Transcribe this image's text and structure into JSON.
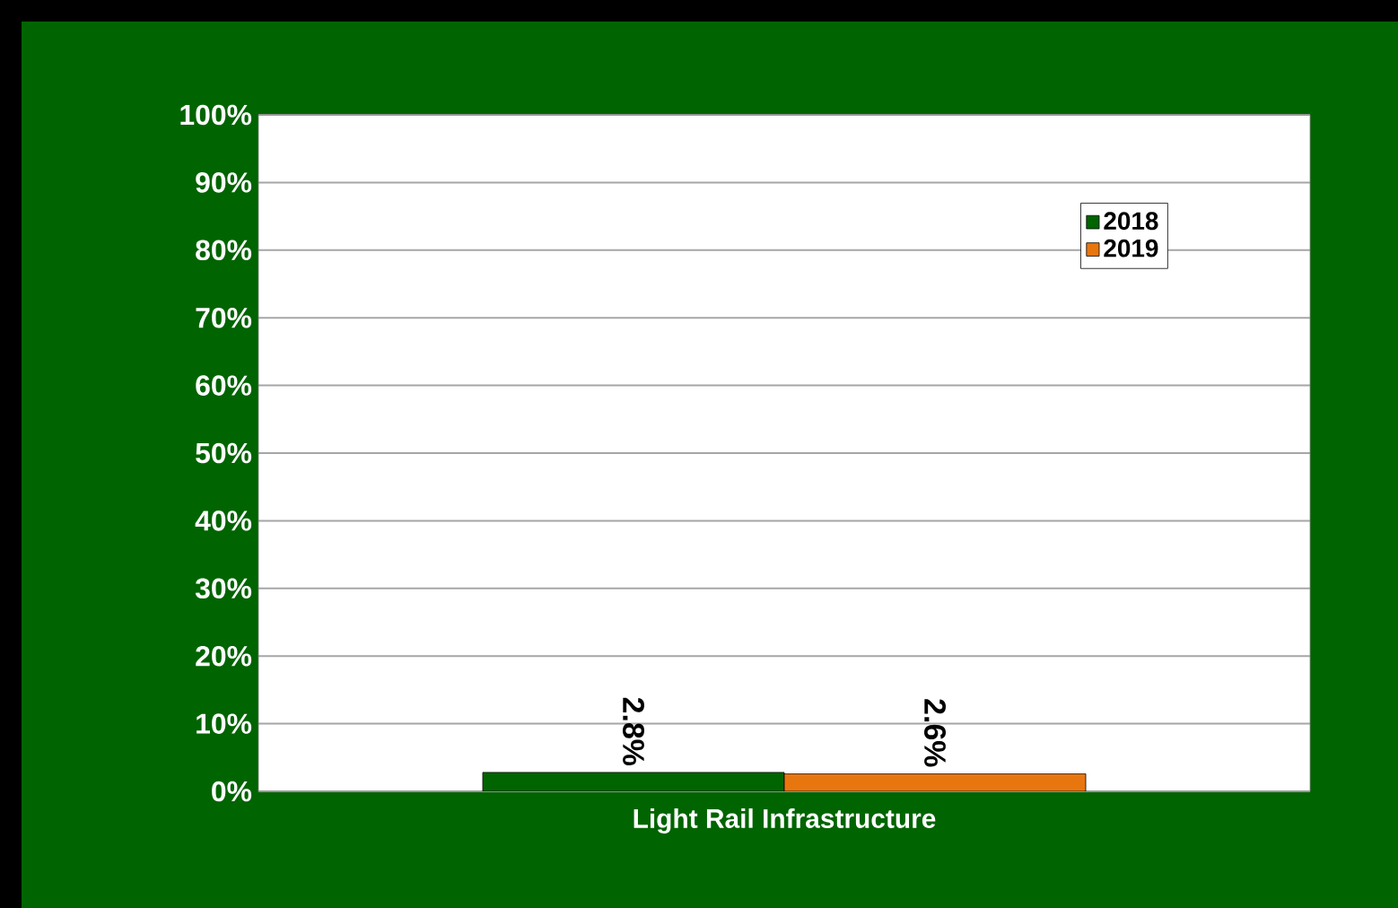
{
  "chart_data": {
    "type": "bar",
    "categories": [
      "Light Rail Infrastructure"
    ],
    "series": [
      {
        "name": "2018",
        "color": "#006400",
        "values": [
          2.8
        ],
        "value_labels": [
          "2.8%"
        ]
      },
      {
        "name": "2019",
        "color": "#e8760f",
        "values": [
          2.6
        ],
        "value_labels": [
          "2.6%"
        ]
      }
    ],
    "ylim": [
      0,
      100
    ],
    "yticks": [
      {
        "value": 0,
        "label": "0%"
      },
      {
        "value": 10,
        "label": "10%"
      },
      {
        "value": 20,
        "label": "20%"
      },
      {
        "value": 30,
        "label": "30%"
      },
      {
        "value": 40,
        "label": "40%"
      },
      {
        "value": 50,
        "label": "50%"
      },
      {
        "value": 60,
        "label": "60%"
      },
      {
        "value": 70,
        "label": "70%"
      },
      {
        "value": 80,
        "label": "80%"
      },
      {
        "value": 90,
        "label": "90%"
      },
      {
        "value": 100,
        "label": "100%"
      }
    ],
    "grid": "y",
    "legend": "top right"
  }
}
